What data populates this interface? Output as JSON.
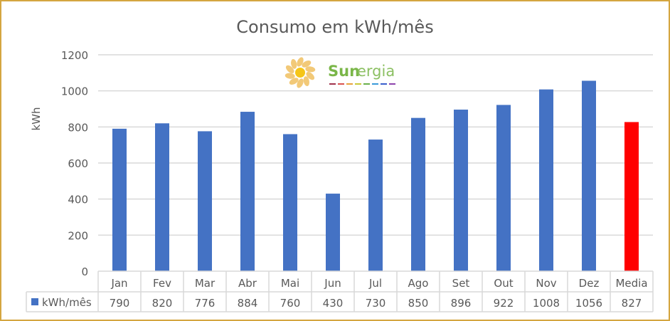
{
  "chart_data": {
    "type": "bar",
    "title": "Consumo em kWh/mês",
    "ylabel": "kWh",
    "xlabel": "",
    "ylim": [
      0,
      1200
    ],
    "yticks": [
      0,
      200,
      400,
      600,
      800,
      1000,
      1200
    ],
    "grid": true,
    "categories": [
      "Jan",
      "Fev",
      "Mar",
      "Abr",
      "Mai",
      "Jun",
      "Jul",
      "Ago",
      "Set",
      "Out",
      "Nov",
      "Dez",
      "Media"
    ],
    "series": [
      {
        "name": "kWh/mês",
        "values": [
          790,
          820,
          776,
          884,
          760,
          430,
          730,
          850,
          896,
          922,
          1008,
          1056,
          827
        ],
        "color": "#4472c4",
        "highlight": {
          "category": "Media",
          "color": "#ff0000"
        }
      }
    ],
    "data_table": true
  },
  "logo": {
    "text_bold": "Sun",
    "text_rest": "ergia",
    "color": "#7ab648",
    "icon": "sun-icon"
  },
  "colors": {
    "border": "#d4a640",
    "grid": "#d9d9d9"
  }
}
